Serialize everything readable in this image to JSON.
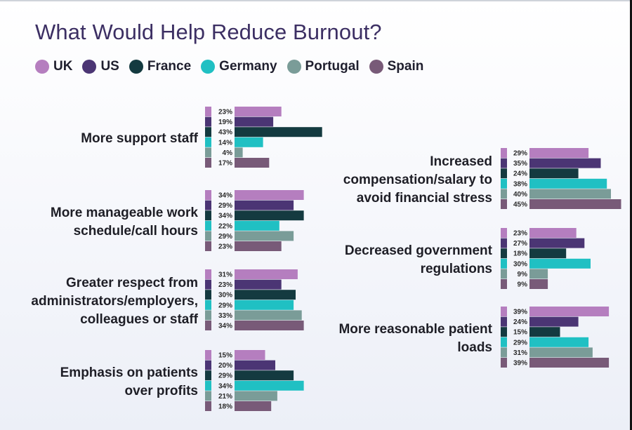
{
  "chart_data": {
    "type": "bar",
    "orientation": "horizontal",
    "title": "What Would Help Reduce Burnout?",
    "series": [
      {
        "name": "UK",
        "color": "#b57ebf"
      },
      {
        "name": "US",
        "color": "#4b3574"
      },
      {
        "name": "France",
        "color": "#143a40"
      },
      {
        "name": "Germany",
        "color": "#20c0c3"
      },
      {
        "name": "Portugal",
        "color": "#7a9c98"
      },
      {
        "name": "Spain",
        "color": "#785a78"
      }
    ],
    "categories": [
      {
        "label": [
          "More support staff"
        ],
        "values": [
          23,
          19,
          43,
          14,
          4,
          17
        ]
      },
      {
        "label": [
          "More manageable work",
          "schedule/call hours"
        ],
        "values": [
          34,
          29,
          34,
          22,
          29,
          23
        ]
      },
      {
        "label": [
          "Greater respect from",
          "administrators/employers,",
          "colleagues or staff"
        ],
        "values": [
          31,
          23,
          30,
          29,
          33,
          34
        ]
      },
      {
        "label": [
          "Emphasis on patients",
          "over profits"
        ],
        "values": [
          15,
          20,
          29,
          34,
          21,
          18
        ]
      },
      {
        "label": [
          "Increased",
          "compensation/salary to",
          "avoid financial stress"
        ],
        "values": [
          29,
          35,
          24,
          38,
          40,
          45
        ]
      },
      {
        "label": [
          "Decreased government",
          "regulations"
        ],
        "values": [
          23,
          27,
          18,
          30,
          9,
          9
        ]
      },
      {
        "label": [
          "More reasonable patient",
          "loads"
        ],
        "values": [
          39,
          24,
          15,
          29,
          31,
          39
        ]
      }
    ],
    "value_suffix": "%",
    "legend_position": "top-left",
    "grid": false
  }
}
